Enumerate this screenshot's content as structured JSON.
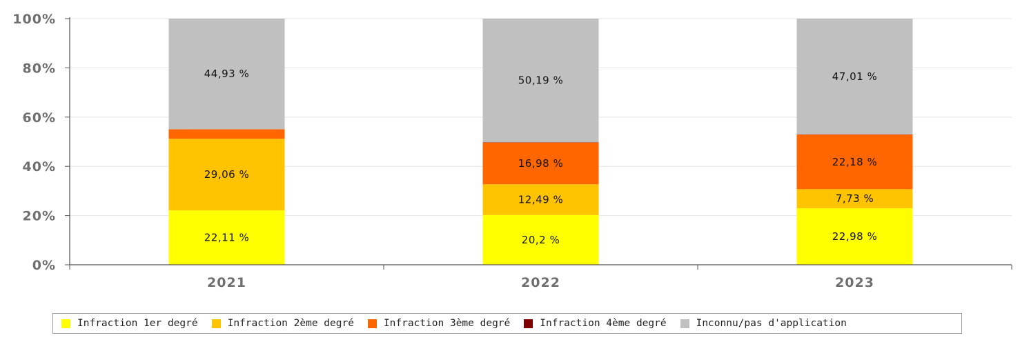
{
  "chart_data": {
    "type": "bar",
    "stacked": true,
    "normalized": true,
    "categories": [
      "2021",
      "2022",
      "2023"
    ],
    "y_ticks": [
      "0%",
      "20%",
      "40%",
      "60%",
      "80%",
      "100%"
    ],
    "ylim": [
      0,
      100
    ],
    "grid": true,
    "legend_position": "bottom",
    "series": [
      {
        "name": "Infraction 1er degré",
        "color": "#ffff00",
        "values": [
          22.11,
          20.2,
          22.98
        ],
        "labels": [
          "22,11 %",
          "20,2 %",
          "22,98 %"
        ]
      },
      {
        "name": "Infraction 2ème degré",
        "color": "#ffc300",
        "values": [
          29.06,
          12.49,
          7.73
        ],
        "labels": [
          "29,06 %",
          "12,49 %",
          "7,73 %"
        ]
      },
      {
        "name": "Infraction 3ème degré",
        "color": "#ff6600",
        "values": [
          3.9,
          16.98,
          22.18
        ],
        "labels": [
          "",
          "16,98 %",
          "22,18 %"
        ]
      },
      {
        "name": "Infraction 4ème degré",
        "color": "#800000",
        "values": [
          0,
          0.14,
          0.1
        ],
        "labels": [
          "",
          "",
          ""
        ]
      },
      {
        "name": "Inconnu/pas d'application",
        "color": "#c0c0c0",
        "values": [
          44.93,
          50.19,
          47.01
        ],
        "labels": [
          "44,93 %",
          "50,19 %",
          "47,01 %"
        ]
      }
    ]
  }
}
